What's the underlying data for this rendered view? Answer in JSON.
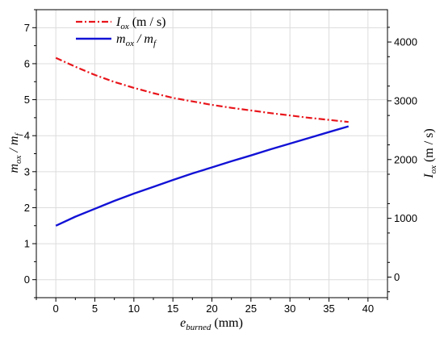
{
  "chart_data": {
    "type": "line",
    "grid": true,
    "legend_placement": "top-left",
    "x": [
      0,
      2.5,
      5,
      7.5,
      10,
      12.5,
      15,
      17.5,
      20,
      22.5,
      25,
      27.5,
      30,
      32.5,
      35,
      37.5
    ],
    "xlim": [
      -2.5,
      42.5
    ],
    "xticks": [
      0,
      5,
      10,
      15,
      20,
      25,
      30,
      35,
      40
    ],
    "xlabel": {
      "base": "e",
      "sub": "burned",
      "unit": " (mm)"
    },
    "yleft": {
      "lim": [
        -0.5,
        7.5
      ],
      "ticks": [
        0,
        1,
        2,
        3,
        4,
        5,
        6,
        7
      ],
      "label": {
        "base1": "m",
        "sub1": "ox",
        "sep": " / ",
        "base2": "m",
        "sub2": "f"
      }
    },
    "yright": {
      "lim": [
        -350,
        4550
      ],
      "ticks": [
        0,
        1000,
        2000,
        3000,
        4000
      ],
      "label": {
        "base": "I",
        "sub": "ox",
        "unit": " (m / s)"
      }
    },
    "series": [
      {
        "key": "iox",
        "axis": "right",
        "style": "dashdot",
        "color": "#e8151b",
        "legend": {
          "base": "I",
          "sub": "ox",
          "unit": " (m / s)"
        },
        "values": [
          3730,
          3580,
          3440,
          3320,
          3220,
          3130,
          3050,
          2990,
          2930,
          2880,
          2835,
          2790,
          2750,
          2710,
          2675,
          2640
        ]
      },
      {
        "key": "ratio",
        "axis": "left",
        "style": "solid",
        "color": "#1212d6",
        "legend": {
          "base1": "m",
          "sub1": "ox",
          "sep": " / ",
          "base2": "m",
          "sub2": "f"
        },
        "values": [
          1.5,
          1.75,
          1.97,
          2.19,
          2.39,
          2.58,
          2.77,
          2.95,
          3.12,
          3.29,
          3.45,
          3.62,
          3.78,
          3.94,
          4.1,
          4.26
        ]
      }
    ]
  }
}
